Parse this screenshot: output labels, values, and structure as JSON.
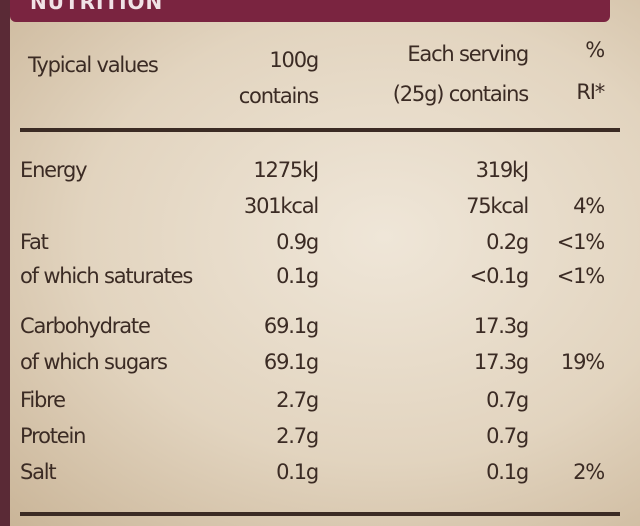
{
  "header": {
    "title": "NUTRITION"
  },
  "table": {
    "columns": [
      [
        "Typical values"
      ],
      [
        "100g",
        "contains"
      ],
      [
        "Each serving",
        "(25g) contains"
      ],
      [
        "%",
        "RI*"
      ]
    ],
    "rows": [
      [
        "Energy",
        "1275kJ",
        "319kJ",
        null
      ],
      [
        null,
        "301kcal",
        "75kcal",
        "4%"
      ],
      [
        "Fat",
        "0.9g",
        "0.2g",
        "<1%"
      ],
      [
        "of which saturates",
        "0.1g",
        "<0.1g",
        "<1%"
      ],
      [
        "Carbohydrate",
        "69.1g",
        "17.3g",
        null
      ],
      [
        "of which sugars",
        "69.1g",
        "17.3g",
        "19%"
      ],
      [
        "Fibre",
        "2.7g",
        "0.7g",
        null
      ],
      [
        "Protein",
        "2.7g",
        "0.7g",
        null
      ],
      [
        "Salt",
        "0.1g",
        "0.1g",
        "2%"
      ]
    ]
  }
}
